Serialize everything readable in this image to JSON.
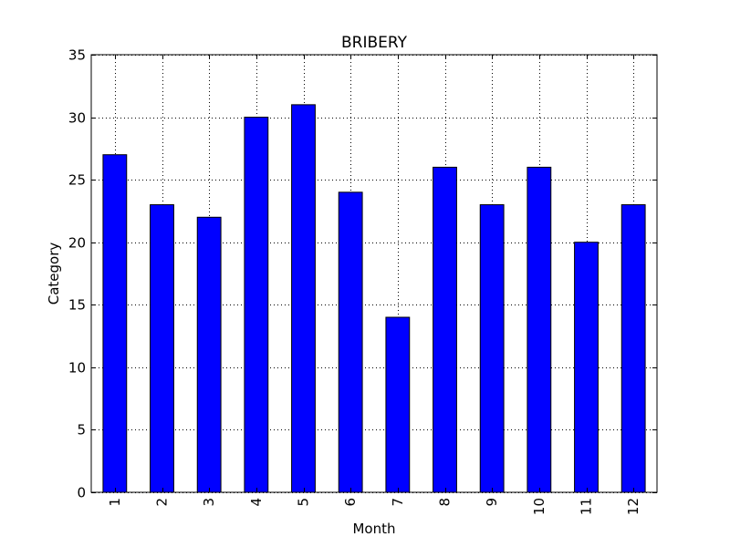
{
  "chart_data": {
    "type": "bar",
    "title": "BRIBERY",
    "xlabel": "Month",
    "ylabel": "Category",
    "categories": [
      "1",
      "2",
      "3",
      "4",
      "5",
      "6",
      "7",
      "8",
      "9",
      "10",
      "11",
      "12"
    ],
    "values": [
      27,
      23,
      22,
      30,
      31,
      24,
      14,
      26,
      23,
      26,
      20,
      23
    ],
    "ylim": [
      0,
      35
    ],
    "yticks": [
      0,
      5,
      10,
      15,
      20,
      25,
      30,
      35
    ],
    "grid": true,
    "bar_color": "#0000ff",
    "x_tick_rotation": "vertical"
  }
}
